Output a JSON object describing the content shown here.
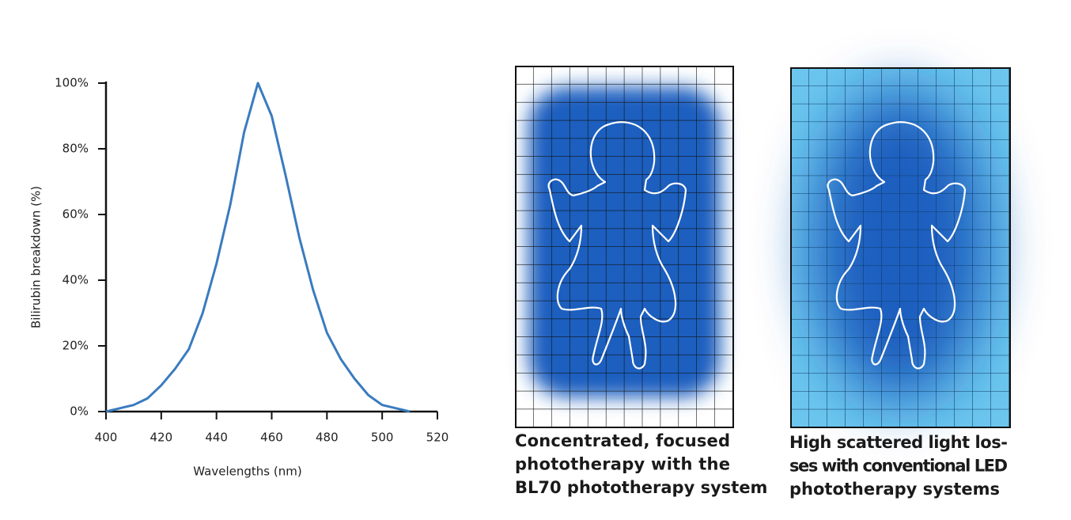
{
  "chart_data": {
    "type": "line",
    "x_label": "Wavelengths (nm)",
    "y_label": "Bilirubin breakdown (%)",
    "x": [
      400,
      405,
      410,
      415,
      420,
      425,
      430,
      435,
      440,
      445,
      450,
      455,
      460,
      465,
      470,
      475,
      480,
      485,
      490,
      495,
      500,
      505,
      510
    ],
    "series": [
      {
        "color": "#3a7bbf",
        "values": [
          0,
          1,
          2,
          4,
          8,
          13,
          19,
          30,
          45,
          63,
          85,
          100,
          90,
          72,
          53,
          37,
          24,
          16,
          10,
          5,
          2,
          1,
          0
        ]
      }
    ],
    "xlim": [
      400,
      520
    ],
    "xticks": [
      400,
      420,
      440,
      460,
      480,
      500,
      520
    ],
    "ylim": [
      0,
      100
    ],
    "yticks": [
      {
        "value": 0,
        "label": "0%"
      },
      {
        "value": 20,
        "label": "20%"
      },
      {
        "value": 40,
        "label": "40%"
      },
      {
        "value": 60,
        "label": "60%"
      },
      {
        "value": 80,
        "label": "80%"
      },
      {
        "value": 100,
        "label": "100%"
      }
    ]
  },
  "panels": [
    {
      "caption_lines": [
        "Concentrated, focused",
        "phototherapy with the",
        "BL70 phototherapy system"
      ]
    },
    {
      "caption_lines": [
        "High scattered light los-",
        "ses with conventional LED",
        "phototherapy systems"
      ]
    }
  ]
}
